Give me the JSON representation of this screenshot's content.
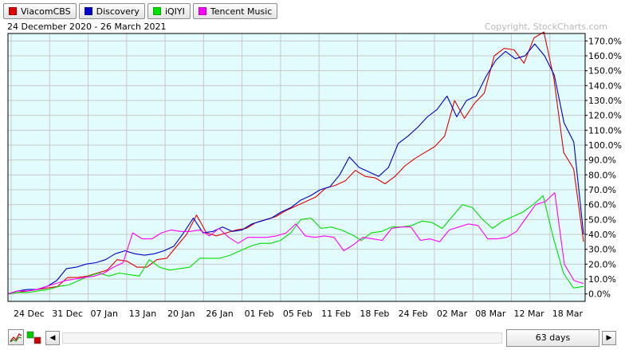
{
  "legend": [
    {
      "label": "ViacomCBS",
      "color": "#e00000"
    },
    {
      "label": "Discovery",
      "color": "#0000c8"
    },
    {
      "label": "iQIYI",
      "color": "#00e000"
    },
    {
      "label": "Tencent Music",
      "color": "#ff00ff"
    }
  ],
  "date_range": "24 December 2020 - 26 March 2021",
  "copyright": "Copyright, StockCharts.com",
  "controls": {
    "days_label": "63 days",
    "prev_arrow": "◀",
    "next_arrow": "▶"
  },
  "chart_data": {
    "type": "line",
    "x_tick_labels": [
      "24 Dec",
      "31 Dec",
      "07 Jan",
      "13 Jan",
      "20 Jan",
      "26 Jan",
      "01 Feb",
      "05 Feb",
      "11 Feb",
      "18 Feb",
      "24 Feb",
      "02 Mar",
      "08 Mar",
      "12 Mar",
      "18 Mar"
    ],
    "y_tick_labels": [
      "0.0%",
      "10.0%",
      "20.0%",
      "30.0%",
      "40.0%",
      "50.0%",
      "60.0%",
      "70.0%",
      "80.0%",
      "90.0%",
      "100.0%",
      "110.0%",
      "120.0%",
      "130.0%",
      "140.0%",
      "150.0%",
      "160.0%",
      "170.0%"
    ],
    "ylim": [
      -5,
      175
    ],
    "grid": true,
    "series": [
      {
        "name": "ViacomCBS",
        "color": "#e00000",
        "values": [
          0,
          1,
          2,
          3,
          4,
          5,
          11,
          11,
          12,
          14,
          16,
          23,
          22,
          18,
          18,
          23,
          24,
          32,
          40,
          53,
          41,
          39,
          41,
          43,
          44,
          48,
          50,
          52,
          56,
          59,
          62,
          65,
          71,
          73,
          76,
          83,
          79,
          78,
          74,
          79,
          86,
          91,
          95,
          99,
          106,
          130,
          118,
          128,
          135,
          160,
          165,
          164,
          155,
          172,
          176,
          145,
          95,
          84,
          35
        ]
      },
      {
        "name": "Discovery",
        "color": "#0000c8",
        "values": [
          0,
          2,
          3,
          3,
          5,
          9,
          17,
          18,
          20,
          21,
          23,
          27,
          29,
          27,
          26,
          27,
          29,
          32,
          41,
          51,
          41,
          42,
          45,
          42,
          43,
          47,
          49,
          51,
          55,
          58,
          63,
          66,
          70,
          72,
          80,
          92,
          85,
          82,
          79,
          85,
          101,
          106,
          112,
          119,
          124,
          133,
          119,
          130,
          133,
          146,
          157,
          163,
          158,
          160,
          168,
          160,
          147,
          115,
          102,
          40
        ]
      },
      {
        "name": "iQIYI",
        "color": "#00e000",
        "values": [
          0,
          1,
          1,
          2,
          3,
          5,
          6,
          9,
          12,
          14,
          12,
          14,
          13,
          12,
          23,
          18,
          16,
          17,
          18,
          24,
          24,
          24,
          26,
          29,
          32,
          34,
          34,
          36,
          41,
          50,
          51,
          44,
          45,
          43,
          40,
          36,
          41,
          42,
          45,
          45,
          46,
          49,
          48,
          44,
          52,
          60,
          58,
          50,
          44,
          49,
          52,
          55,
          60,
          66,
          38,
          14,
          4,
          5
        ]
      },
      {
        "name": "Tencent Music",
        "color": "#ff00ff",
        "values": [
          0,
          2,
          2,
          3,
          5,
          7,
          9,
          10,
          11,
          12,
          14,
          18,
          21,
          41,
          37,
          37,
          41,
          43,
          42,
          42,
          43,
          39,
          44,
          38,
          34,
          38,
          38,
          38,
          39,
          41,
          47,
          39,
          38,
          39,
          38,
          29,
          33,
          38,
          37,
          36,
          44,
          45,
          45,
          36,
          37,
          35,
          43,
          45,
          47,
          46,
          37,
          37,
          38,
          42,
          51,
          60,
          62,
          68,
          20,
          9,
          7
        ]
      }
    ]
  }
}
